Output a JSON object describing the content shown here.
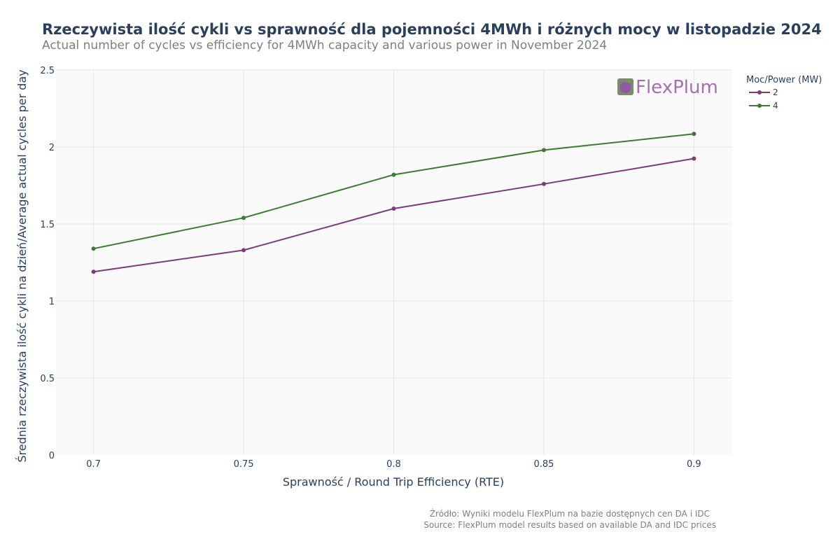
{
  "chart_data": {
    "type": "line",
    "title": "Rzeczywista ilość cykli vs sprawność dla pojemności 4MWh i różnych mocy w listopadzie 2024",
    "subtitle": "Actual number of cycles vs efficiency for 4MWh capacity and various power in November 2024",
    "xlabel": "Sprawność / Round Trip Efficiency (RTE)",
    "ylabel": "Średnia rzeczywista ilość cykli na dzień/Average actual cycles per day",
    "x": [
      0.7,
      0.75,
      0.8,
      0.85,
      0.9
    ],
    "x_ticks": [
      "0.7",
      "0.75",
      "0.8",
      "0.85",
      "0.9"
    ],
    "y_ticks": [
      "0",
      "0.5",
      "1",
      "1.5",
      "2",
      "2.5"
    ],
    "ylim": [
      0,
      2.5
    ],
    "grid": true,
    "legend_title": "Moc/Power (MW)",
    "legend_position": "top-right",
    "series": [
      {
        "name": "2",
        "color": "#7b3b7e",
        "values": [
          1.19,
          1.33,
          1.6,
          1.76,
          1.925
        ]
      },
      {
        "name": "4",
        "color": "#3d7a33",
        "values": [
          1.34,
          1.54,
          1.82,
          1.98,
          2.085
        ]
      }
    ]
  },
  "watermark": {
    "text": "FlexPlum",
    "color": "#a56fae"
  },
  "source": {
    "line1": "Źródło: Wyniki modelu FlexPlum na bazie dostępnych cen DA i IDC",
    "line2": "Source: FlexPlum model results based on available DA and IDC prices"
  }
}
